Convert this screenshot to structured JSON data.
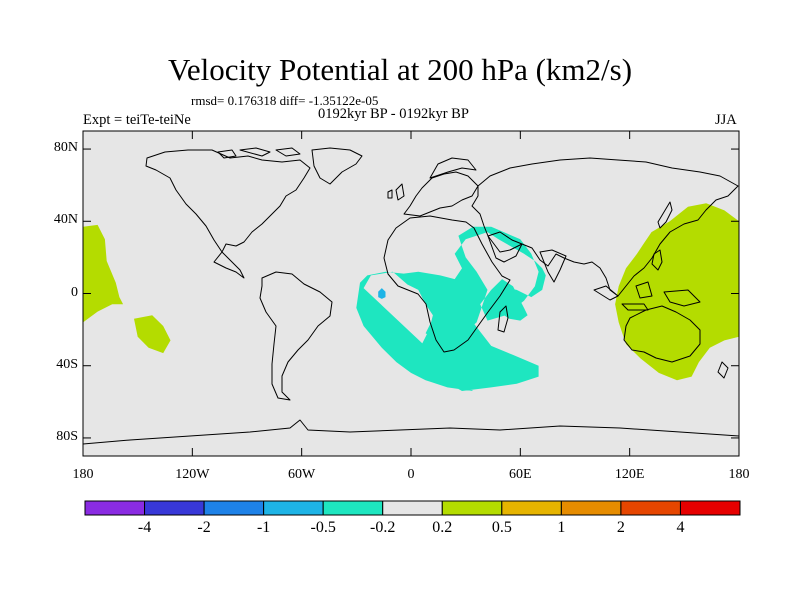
{
  "title": "Velocity Potential at 200 hPa (km2/s)",
  "stats_line": "rmsd= 0.176318  diff= -1.35122e-05",
  "experiment_label": "Expt = teiTe-teiNe",
  "period_label": "0192kyr BP - 0192kyr BP",
  "season_label": "JJA",
  "map": {
    "projection": "cylindrical-equidistant",
    "lon_range": [
      -180,
      180
    ],
    "lat_range": [
      -90,
      90
    ],
    "land_outline_color": "#000000",
    "ocean_fill_color": "#e6e6e6"
  },
  "lat_axis": {
    "ticks": [
      {
        "value": 80,
        "label": "80N"
      },
      {
        "value": 40,
        "label": "40N"
      },
      {
        "value": 0,
        "label": "0"
      },
      {
        "value": -40,
        "label": "40S"
      },
      {
        "value": -80,
        "label": "80S"
      }
    ]
  },
  "lon_axis": {
    "ticks": [
      {
        "value": -180,
        "label": "180"
      },
      {
        "value": -120,
        "label": "120W"
      },
      {
        "value": -60,
        "label": "60W"
      },
      {
        "value": 0,
        "label": "0"
      },
      {
        "value": 60,
        "label": "60E"
      },
      {
        "value": 120,
        "label": "120E"
      },
      {
        "value": 180,
        "label": "180"
      }
    ]
  },
  "colorbar": {
    "colors": [
      "#8a2be2",
      "#3838d8",
      "#1e82e8",
      "#1eb4e6",
      "#1ee6c0",
      "#e6e6e6",
      "#b4dc00",
      "#e6b400",
      "#e68c00",
      "#e64600",
      "#e60000"
    ],
    "boundary_labels": [
      "-4",
      "-2",
      "-1",
      "-0.5",
      "-0.2",
      "0.2",
      "0.5",
      "1",
      "2",
      "4"
    ]
  },
  "anomaly_regions": [
    {
      "name": "atlantic-africa-indian-negative",
      "category": "-0.5 to -0.2",
      "color": "#1ee6c0",
      "polygon": [
        [
          -26,
          3
        ],
        [
          -22,
          10
        ],
        [
          -10,
          12
        ],
        [
          -2,
          5
        ],
        [
          4,
          2
        ],
        [
          8,
          -6
        ],
        [
          12,
          -12
        ],
        [
          10,
          -20
        ],
        [
          6,
          -28
        ],
        [
          4,
          -38
        ],
        [
          8,
          -42
        ],
        [
          14,
          -46
        ],
        [
          28,
          -54
        ],
        [
          44,
          -52
        ],
        [
          58,
          -50
        ],
        [
          70,
          -46
        ],
        [
          70,
          -40
        ],
        [
          56,
          -34
        ],
        [
          44,
          -29
        ],
        [
          34,
          -16
        ],
        [
          28,
          -8
        ],
        [
          26,
          -3
        ],
        [
          24,
          -12
        ],
        [
          18,
          -10
        ],
        [
          12,
          -14
        ],
        [
          8,
          -22
        ],
        [
          20,
          -30
        ],
        [
          36,
          -16
        ],
        [
          40,
          -4
        ],
        [
          42,
          2
        ],
        [
          36,
          12
        ],
        [
          30,
          20
        ],
        [
          28,
          26
        ],
        [
          26,
          32
        ],
        [
          34,
          37
        ],
        [
          44,
          37
        ],
        [
          60,
          30
        ],
        [
          66,
          22
        ],
        [
          70,
          12
        ],
        [
          68,
          4
        ],
        [
          62,
          -4
        ],
        [
          52,
          -12
        ],
        [
          42,
          -15
        ],
        [
          38,
          -6
        ],
        [
          44,
          2
        ],
        [
          50,
          8
        ],
        [
          56,
          4
        ],
        [
          60,
          -4
        ],
        [
          62,
          -8
        ],
        [
          64,
          -12
        ],
        [
          60,
          -15
        ],
        [
          54,
          -14
        ],
        [
          48,
          -10
        ],
        [
          44,
          -2
        ],
        [
          48,
          4
        ],
        [
          58,
          2
        ],
        [
          66,
          -2
        ],
        [
          72,
          2
        ],
        [
          74,
          10
        ],
        [
          72,
          14
        ],
        [
          68,
          18
        ],
        [
          62,
          22
        ],
        [
          48,
          30
        ],
        [
          42,
          34
        ],
        [
          30,
          30
        ],
        [
          24,
          22
        ],
        [
          28,
          14
        ],
        [
          24,
          8
        ],
        [
          16,
          10
        ],
        [
          4,
          12
        ],
        [
          -4,
          11
        ],
        [
          -14,
          12
        ],
        [
          -24,
          10
        ],
        [
          -28,
          6
        ],
        [
          -30,
          -8
        ],
        [
          -26,
          -18
        ],
        [
          -16,
          -30
        ],
        [
          -8,
          -38
        ],
        [
          0,
          -44
        ],
        [
          8,
          -48
        ],
        [
          20,
          -52
        ],
        [
          34,
          -54
        ]
      ]
    },
    {
      "name": "west-africa-core-negative",
      "category": "-1 to -0.5",
      "color": "#1eb4e6",
      "polygon": [
        [
          -16,
          3
        ],
        [
          -14,
          1
        ],
        [
          -14,
          -2
        ],
        [
          -16,
          -3
        ],
        [
          -18,
          -2
        ],
        [
          -18,
          1
        ]
      ]
    },
    {
      "name": "east-pacific-positive",
      "category": "0.2 to 0.5",
      "color": "#b4dc00",
      "polygon": [
        [
          -180,
          37
        ],
        [
          -172,
          38
        ],
        [
          -168,
          30
        ],
        [
          -167,
          18
        ],
        [
          -162,
          6
        ],
        [
          -160,
          -2
        ],
        [
          -158,
          -6
        ],
        [
          -164,
          -6
        ],
        [
          -172,
          -10
        ],
        [
          -180,
          -16
        ]
      ]
    },
    {
      "name": "south-pacific-positive",
      "category": "0.2 to 0.5",
      "color": "#b4dc00",
      "polygon": [
        [
          -152,
          -14
        ],
        [
          -142,
          -12
        ],
        [
          -136,
          -18
        ],
        [
          -132,
          -26
        ],
        [
          -136,
          -33
        ],
        [
          -144,
          -30
        ],
        [
          -150,
          -24
        ]
      ]
    },
    {
      "name": "west-pacific-positive",
      "category": "0.2 to 0.5",
      "color": "#b4dc00",
      "polygon": [
        [
          128,
          28
        ],
        [
          132,
          34
        ],
        [
          142,
          40
        ],
        [
          152,
          48
        ],
        [
          162,
          50
        ],
        [
          172,
          46
        ],
        [
          180,
          40
        ],
        [
          180,
          -24
        ],
        [
          172,
          -26
        ],
        [
          164,
          -30
        ],
        [
          158,
          -38
        ],
        [
          154,
          -46
        ],
        [
          146,
          -48
        ],
        [
          136,
          -44
        ],
        [
          126,
          -36
        ],
        [
          118,
          -28
        ],
        [
          114,
          -16
        ],
        [
          112,
          -6
        ],
        [
          114,
          4
        ],
        [
          118,
          14
        ],
        [
          124,
          22
        ]
      ]
    }
  ]
}
